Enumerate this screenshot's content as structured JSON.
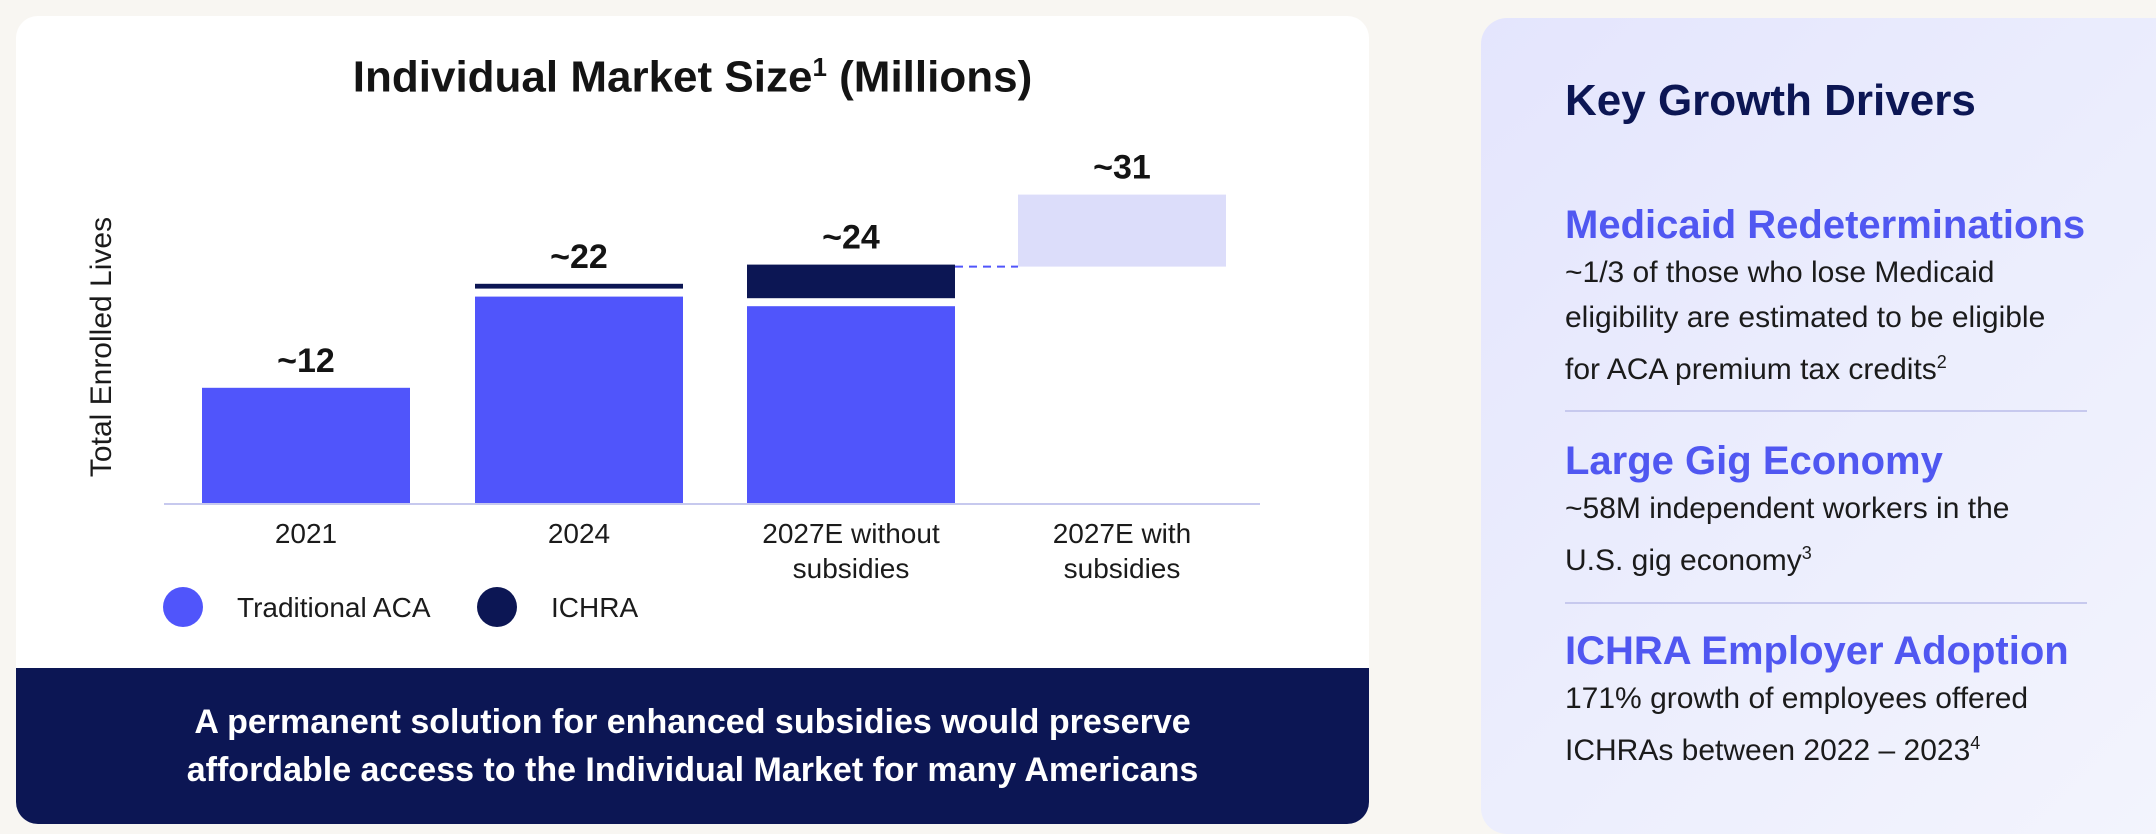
{
  "chart": {
    "title": "Individual Market Size",
    "title_sup": "1",
    "title_suffix": " (Millions)",
    "ylabel": "Total  Enrolled Lives",
    "legend": [
      {
        "label": "Traditional ACA",
        "color": "#5055fb"
      },
      {
        "label": "ICHRA",
        "color": "#0c1654"
      }
    ]
  },
  "chart_data": {
    "type": "bar",
    "stacked": true,
    "categories": [
      "2021",
      "2024",
      "2027E without subsidies",
      "2027E with subsidies"
    ],
    "series": [
      {
        "name": "Traditional ACA",
        "values": [
          12,
          21.5,
          20.5,
          null
        ],
        "color": "#5055fb"
      },
      {
        "name": "ICHRA",
        "values": [
          0,
          0.5,
          3.5,
          null
        ],
        "color": "#0c1654"
      }
    ],
    "increment_bar": {
      "category": "2027E with subsidies",
      "from": 24,
      "to": 31,
      "color": "#dcddfa"
    },
    "data_labels": [
      "~12",
      "~22",
      "~24",
      "~31"
    ],
    "ylim": [
      0,
      31
    ],
    "grid": false,
    "legend_position": "bottom-left"
  },
  "banner": {
    "line1": "A permanent solution for enhanced subsidies would preserve",
    "line2": "affordable access to the Individual Market for many Americans"
  },
  "drivers": {
    "title": "Key Growth Drivers",
    "items": [
      {
        "heading": "Medicaid Redeterminations",
        "lines": [
          "~1/3 of those who lose Medicaid",
          "eligibility are estimated to be eligible",
          "for ACA premium tax credits"
        ],
        "sup": "2"
      },
      {
        "heading": "Large Gig Economy",
        "lines": [
          "~58M independent workers in the",
          "U.S. gig economy"
        ],
        "sup": "3"
      },
      {
        "heading": "ICHRA Employer Adoption",
        "lines": [
          "171% growth of employees offered",
          "ICHRAs between 2022 – 2023"
        ],
        "sup": "4"
      }
    ]
  }
}
